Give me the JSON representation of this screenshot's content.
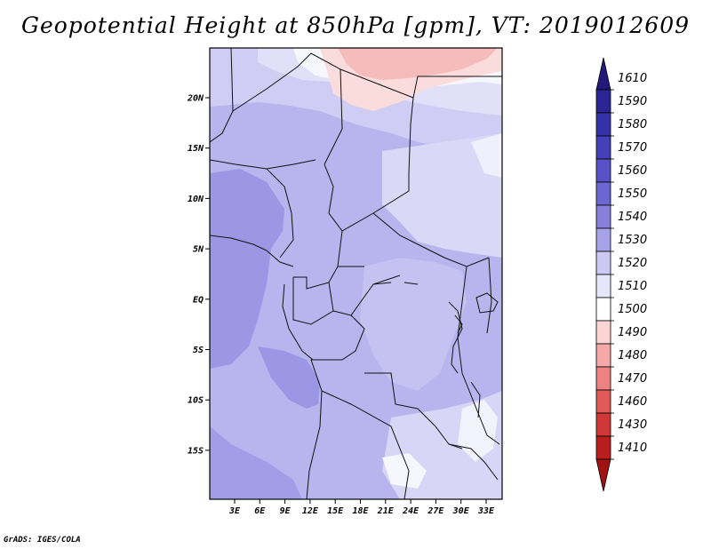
{
  "title": "Geopotential Height at 850hPa [gpm], VT: 2019012609",
  "credit": "GrADS: IGES/COLA",
  "map": {
    "lat_labels": [
      "20N",
      "15N",
      "10N",
      "5N",
      "EQ",
      "5S",
      "10S",
      "15S"
    ],
    "lon_labels": [
      "3E",
      "6E",
      "9E",
      "12E",
      "15E",
      "18E",
      "21E",
      "24E",
      "27E",
      "30E",
      "33E"
    ]
  },
  "colorbar": {
    "levels": [
      "1610",
      "1590",
      "1580",
      "1570",
      "1560",
      "1550",
      "1540",
      "1530",
      "1520",
      "1510",
      "1500",
      "1490",
      "1480",
      "1470",
      "1460",
      "1430",
      "1410"
    ],
    "colors": [
      "#24177a",
      "#2b2593",
      "#3532a8",
      "#4540b8",
      "#5852c6",
      "#6c66d1",
      "#8680db",
      "#a6a2e8",
      "#cbc9f1",
      "#e6e5fa",
      "#ffffff",
      "#fbd4d4",
      "#f4a8a8",
      "#ec8282",
      "#e05a5a",
      "#d03838",
      "#b81e1e",
      "#a11313"
    ]
  },
  "colors": {
    "frame": "#000000",
    "border": "#111111"
  }
}
